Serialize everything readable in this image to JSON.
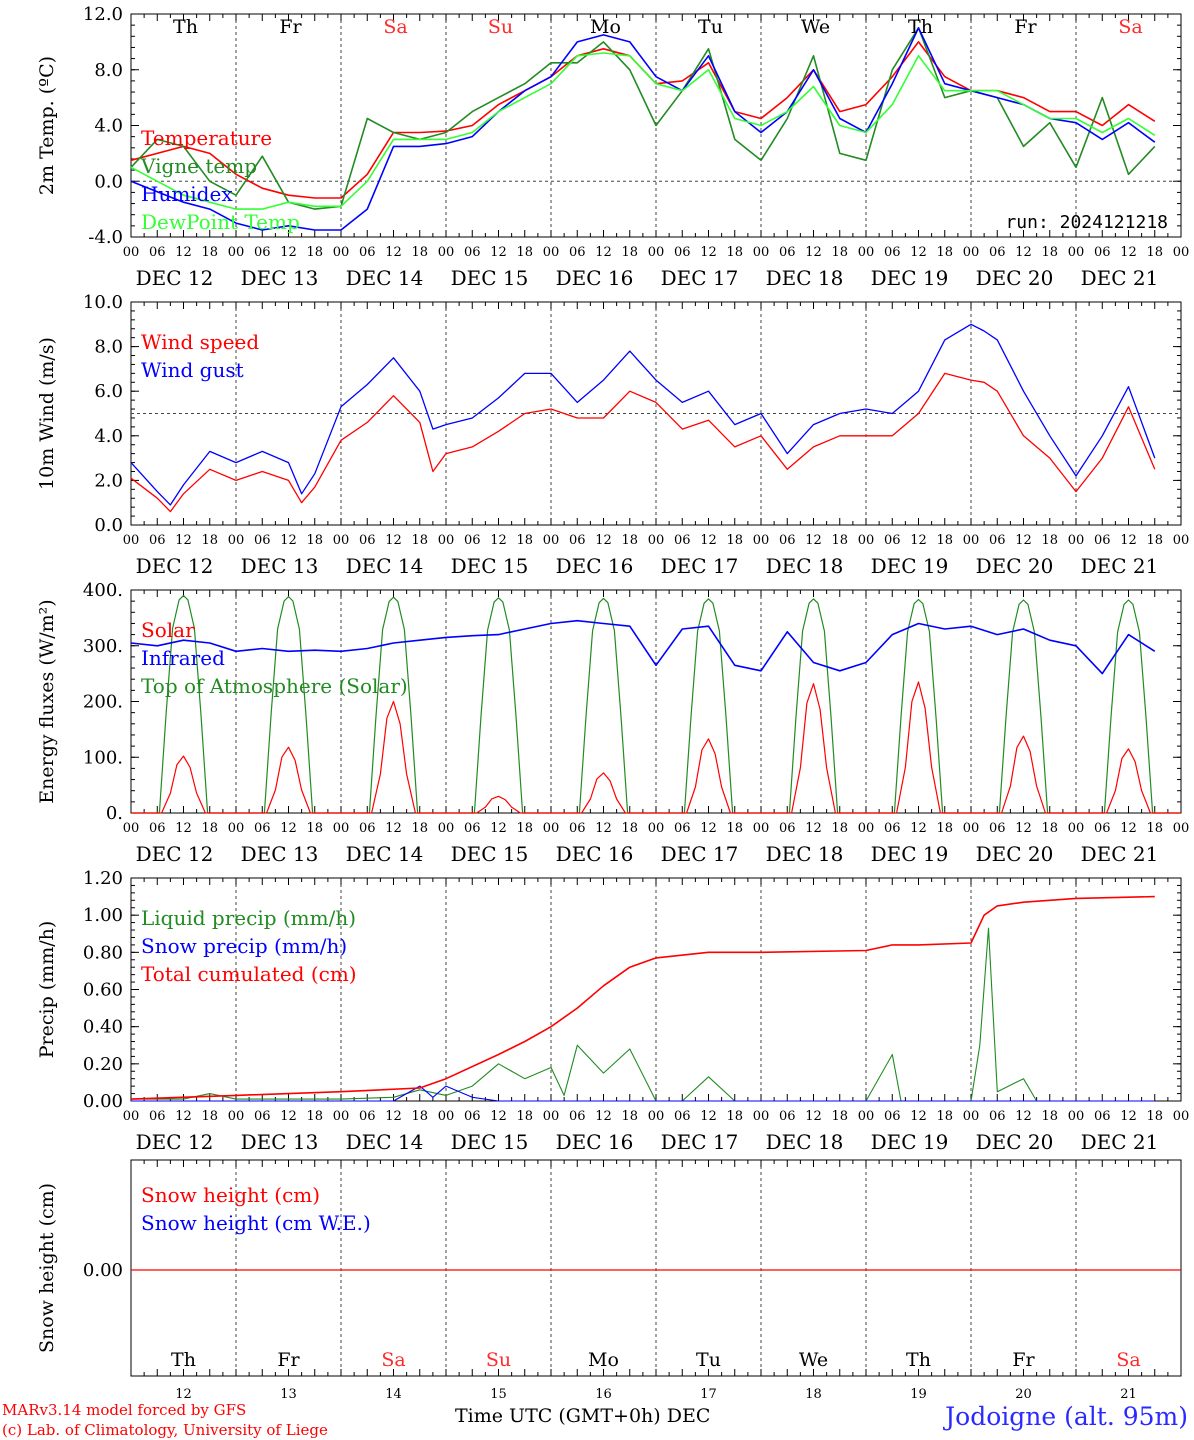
{
  "window_title": "Jodoigne (alt. 95m)",
  "run_label": "run: 2024121218",
  "credits": {
    "line1": "MARv3.14 model forced by GFS",
    "line2": "(c) Lab. of Climatology, University of Liege"
  },
  "xaxis": {
    "title": "Time UTC (GMT+0h)",
    "month": "DEC",
    "hour_ticks": [
      "00",
      "06",
      "12",
      "18"
    ],
    "day_labels": [
      "DEC 12",
      "DEC 13",
      "DEC 14",
      "DEC 15",
      "DEC 16",
      "DEC 17",
      "DEC 18",
      "DEC 19",
      "DEC 20",
      "DEC 21"
    ],
    "day_numbers": [
      "12",
      "13",
      "14",
      "15",
      "16",
      "17",
      "18",
      "19",
      "20",
      "21"
    ],
    "weekdays": [
      {
        "label": "Th",
        "weekend": false
      },
      {
        "label": "Fr",
        "weekend": false
      },
      {
        "label": "Sa",
        "weekend": true
      },
      {
        "label": "Su",
        "weekend": true
      },
      {
        "label": "Mo",
        "weekend": false
      },
      {
        "label": "Tu",
        "weekend": false
      },
      {
        "label": "We",
        "weekend": false
      },
      {
        "label": "Th",
        "weekend": false
      },
      {
        "label": "Fr",
        "weekend": false
      },
      {
        "label": "Sa",
        "weekend": true
      }
    ]
  },
  "colors": {
    "red": "#ff0000",
    "blue": "#0000ff",
    "green": "#228b22",
    "lime": "#33ff33",
    "weekend": "#ff2a2a",
    "grid": "#555555"
  },
  "chart_data": [
    {
      "type": "line",
      "ylabel": "2m Temp. (ºC)",
      "ylim": [
        -4,
        12
      ],
      "yticks": [
        "-4.0",
        "0.0",
        "4.0",
        "8.0",
        "12.0"
      ],
      "reference_line": 0,
      "x_unit": "hours since DEC 12 00 UTC",
      "series": [
        {
          "name": "Temperature",
          "color": "#ff0000",
          "x": [
            0,
            12,
            18,
            24,
            30,
            36,
            42,
            48,
            54,
            60,
            66,
            72,
            78,
            84,
            90,
            96,
            102,
            108,
            114,
            120,
            126,
            132,
            138,
            144,
            150,
            156,
            162,
            168,
            174,
            180,
            186,
            192,
            198,
            204,
            210,
            216,
            222,
            228,
            234
          ],
          "y": [
            1.5,
            2.5,
            2,
            0.5,
            -0.5,
            -1,
            -1.2,
            -1.2,
            0.5,
            3.5,
            3.5,
            3.6,
            4,
            5.5,
            6.5,
            7.5,
            9,
            9.5,
            9,
            7,
            7.2,
            8.5,
            5,
            4.5,
            6,
            8,
            5,
            5.5,
            7.5,
            10,
            7.5,
            6.5,
            6.5,
            6,
            5,
            5,
            4,
            5.5,
            4.3
          ]
        },
        {
          "name": "Vigne temp",
          "color": "#228b22",
          "x": [
            0,
            6,
            12,
            18,
            24,
            30,
            36,
            42,
            48,
            54,
            60,
            66,
            72,
            78,
            84,
            90,
            96,
            102,
            108,
            114,
            120,
            126,
            132,
            138,
            144,
            150,
            156,
            162,
            168,
            174,
            180,
            186,
            192,
            198,
            204,
            210,
            216,
            222,
            228,
            234
          ],
          "y": [
            1,
            3,
            2.5,
            0,
            -1,
            1.8,
            -1.5,
            -2,
            -1.8,
            4.5,
            3.5,
            3,
            3.5,
            5,
            6,
            7,
            8.5,
            8.5,
            10,
            8,
            4,
            6.5,
            9.5,
            3,
            1.5,
            4.5,
            9,
            2,
            1.5,
            8,
            11,
            6,
            6.5,
            6,
            2.5,
            4.2,
            1,
            6,
            0.5,
            2.5
          ]
        },
        {
          "name": "Humidex",
          "color": "#0000ff",
          "x": [
            0,
            12,
            18,
            24,
            30,
            36,
            42,
            48,
            54,
            60,
            66,
            72,
            78,
            84,
            90,
            96,
            102,
            108,
            114,
            120,
            126,
            132,
            138,
            144,
            150,
            156,
            162,
            168,
            174,
            180,
            186,
            192,
            198,
            204,
            210,
            216,
            222,
            228,
            234
          ],
          "y": [
            0,
            -1.5,
            -2,
            -3,
            -3.5,
            -3.2,
            -3.5,
            -3.5,
            -2,
            2.5,
            2.5,
            2.7,
            3.2,
            5,
            6.5,
            7.5,
            10,
            10.5,
            10,
            7.5,
            6.5,
            9,
            5,
            3.5,
            5,
            8,
            4.5,
            3.5,
            7,
            11,
            7,
            6.5,
            6,
            5.5,
            4.5,
            4.2,
            3,
            4.2,
            2.8
          ]
        },
        {
          "name": "DewPoint Temp",
          "color": "#33ff33",
          "x": [
            0,
            12,
            18,
            24,
            30,
            36,
            42,
            48,
            54,
            60,
            66,
            72,
            78,
            84,
            90,
            96,
            102,
            108,
            114,
            120,
            126,
            132,
            138,
            144,
            150,
            156,
            162,
            168,
            174,
            180,
            186,
            192,
            198,
            204,
            210,
            216,
            222,
            228,
            234
          ],
          "y": [
            1,
            -1,
            -1.5,
            -2,
            -2,
            -1.5,
            -1.8,
            -1.8,
            0,
            3,
            3,
            3,
            3.5,
            5,
            6,
            7,
            9,
            9.2,
            9,
            7,
            6.5,
            8,
            4.5,
            4,
            5,
            6.8,
            4,
            3.5,
            5.5,
            9,
            6.5,
            6.5,
            6.5,
            5.5,
            4.5,
            4.5,
            3.5,
            4.5,
            3.3
          ]
        }
      ]
    },
    {
      "type": "line",
      "ylabel": "10m Wind (m/s)",
      "ylim": [
        0,
        10
      ],
      "yticks": [
        "0.0",
        "2.0",
        "4.0",
        "6.0",
        "8.0",
        "10.0"
      ],
      "reference_line": 5,
      "x_unit": "hours since DEC 12 00 UTC",
      "series": [
        {
          "name": "Wind speed",
          "color": "#ff0000",
          "x": [
            0,
            6,
            9,
            12,
            18,
            24,
            30,
            36,
            39,
            42,
            48,
            54,
            60,
            66,
            69,
            72,
            78,
            84,
            90,
            96,
            102,
            108,
            114,
            120,
            126,
            132,
            138,
            144,
            150,
            156,
            162,
            168,
            174,
            180,
            186,
            192,
            195,
            198,
            204,
            210,
            216,
            222,
            228,
            234
          ],
          "y": [
            2.1,
            1.2,
            0.6,
            1.4,
            2.5,
            2,
            2.4,
            2,
            1,
            1.7,
            3.8,
            4.6,
            5.8,
            4.6,
            2.4,
            3.2,
            3.5,
            4.2,
            5,
            5.2,
            4.8,
            4.8,
            6,
            5.5,
            4.3,
            4.7,
            3.5,
            4,
            2.5,
            3.5,
            4,
            4,
            4,
            5,
            6.8,
            6.5,
            6.4,
            6,
            4,
            3,
            1.5,
            3,
            5.3,
            2.5
          ]
        },
        {
          "name": "Wind gust",
          "color": "#0000ff",
          "x": [
            0,
            6,
            9,
            12,
            18,
            24,
            30,
            36,
            39,
            42,
            48,
            54,
            60,
            66,
            69,
            72,
            78,
            84,
            90,
            96,
            102,
            108,
            114,
            120,
            126,
            132,
            138,
            144,
            150,
            156,
            162,
            168,
            174,
            180,
            186,
            192,
            195,
            198,
            204,
            210,
            216,
            222,
            228,
            234
          ],
          "y": [
            2.8,
            1.5,
            0.9,
            1.8,
            3.3,
            2.8,
            3.3,
            2.8,
            1.4,
            2.3,
            5.3,
            6.3,
            7.5,
            6,
            4.3,
            4.5,
            4.8,
            5.7,
            6.8,
            6.8,
            5.5,
            6.5,
            7.8,
            6.5,
            5.5,
            6,
            4.5,
            5,
            3.2,
            4.5,
            5,
            5.2,
            5,
            6,
            8.3,
            9,
            8.7,
            8.3,
            6,
            4,
            2.2,
            4,
            6.2,
            3
          ]
        }
      ]
    },
    {
      "type": "line",
      "ylabel": "Energy fluxes (W/m²)",
      "ylim": [
        0,
        400
      ],
      "yticks": [
        "0.",
        "100.",
        "200.",
        "300.",
        "400."
      ],
      "x_unit": "hours since DEC 12 00 UTC",
      "series": [
        {
          "name": "Solar",
          "color": "#ff0000",
          "day_peaks": [
            {
              "day": 0,
              "peak": 102
            },
            {
              "day": 1,
              "peak": 118
            },
            {
              "day": 2,
              "peak": 200
            },
            {
              "day": 3,
              "peak": 30
            },
            {
              "day": 4,
              "peak": 72
            },
            {
              "day": 5,
              "peak": 133
            },
            {
              "day": 6,
              "peak": 232
            },
            {
              "day": 7,
              "peak": 235
            },
            {
              "day": 8,
              "peak": 138
            },
            {
              "day": 9,
              "peak": 115
            }
          ]
        },
        {
          "name": "Infrared",
          "color": "#0000ff",
          "x": [
            0,
            6,
            12,
            18,
            24,
            30,
            36,
            42,
            48,
            54,
            60,
            66,
            72,
            78,
            84,
            90,
            96,
            102,
            108,
            114,
            120,
            126,
            132,
            138,
            144,
            150,
            156,
            162,
            168,
            174,
            180,
            186,
            192,
            198,
            204,
            210,
            216,
            222,
            228,
            234
          ],
          "y": [
            305,
            300,
            310,
            305,
            290,
            295,
            290,
            292,
            290,
            295,
            305,
            310,
            315,
            318,
            320,
            330,
            340,
            345,
            340,
            335,
            265,
            330,
            335,
            265,
            255,
            325,
            270,
            255,
            270,
            320,
            340,
            330,
            335,
            320,
            330,
            310,
            300,
            250,
            320,
            290
          ]
        },
        {
          "name": "Top of Atmosphere (Solar)",
          "color": "#228b22",
          "day_peaks": [
            {
              "day": 0,
              "peak": 390
            },
            {
              "day": 1,
              "peak": 388
            },
            {
              "day": 2,
              "peak": 387
            },
            {
              "day": 3,
              "peak": 386
            },
            {
              "day": 4,
              "peak": 385
            },
            {
              "day": 5,
              "peak": 384
            },
            {
              "day": 6,
              "peak": 384
            },
            {
              "day": 7,
              "peak": 383
            },
            {
              "day": 8,
              "peak": 382
            },
            {
              "day": 9,
              "peak": 382
            }
          ]
        }
      ]
    },
    {
      "type": "line",
      "ylabel": "Precip (mm/h)",
      "ylim": [
        0,
        1.2
      ],
      "yticks": [
        "0.00",
        "0.20",
        "0.40",
        "0.60",
        "0.80",
        "1.00",
        "1.20"
      ],
      "x_unit": "hours since DEC 12 00 UTC",
      "series": [
        {
          "name": "Liquid precip (mm/h)",
          "color": "#228b22",
          "x": [
            0,
            12,
            18,
            24,
            48,
            60,
            66,
            72,
            78,
            84,
            90,
            96,
            99,
            102,
            108,
            114,
            120,
            126,
            132,
            138,
            168,
            174,
            176,
            180,
            192,
            194,
            196,
            198,
            204,
            207,
            210,
            234
          ],
          "y": [
            0.01,
            0.01,
            0.04,
            0.01,
            0.01,
            0.02,
            0.06,
            0.03,
            0.08,
            0.2,
            0.12,
            0.18,
            0.03,
            0.3,
            0.15,
            0.28,
            0,
            0,
            0.13,
            0,
            0,
            0.25,
            0,
            0,
            0,
            0.3,
            0.93,
            0.05,
            0.12,
            0,
            0,
            0
          ]
        },
        {
          "name": "Snow precip (mm/h)",
          "color": "#0000ff",
          "x": [
            0,
            60,
            66,
            69,
            72,
            78,
            84,
            90,
            234
          ],
          "y": [
            0,
            0,
            0.08,
            0.02,
            0.08,
            0.02,
            0,
            0,
            0
          ]
        },
        {
          "name": "Total cumulated (cm)",
          "color": "#ff0000",
          "x": [
            0,
            24,
            48,
            66,
            72,
            84,
            90,
            96,
            102,
            108,
            114,
            120,
            132,
            144,
            168,
            174,
            180,
            192,
            195,
            198,
            204,
            216,
            234
          ],
          "y": [
            0.01,
            0.03,
            0.05,
            0.07,
            0.12,
            0.25,
            0.32,
            0.4,
            0.5,
            0.62,
            0.72,
            0.77,
            0.8,
            0.8,
            0.81,
            0.84,
            0.84,
            0.85,
            1.0,
            1.05,
            1.07,
            1.09,
            1.1
          ]
        }
      ]
    },
    {
      "type": "line",
      "ylabel": "Snow height (cm)",
      "yticks": [
        "0.00"
      ],
      "x_unit": "hours since DEC 12 00 UTC",
      "series": [
        {
          "name": "Snow height (cm)",
          "color": "#ff0000",
          "x": [
            0,
            240
          ],
          "y": [
            0,
            0
          ]
        },
        {
          "name": "Snow height (cm W.E.)",
          "color": "#0000ff",
          "x": [],
          "y": []
        }
      ]
    }
  ]
}
